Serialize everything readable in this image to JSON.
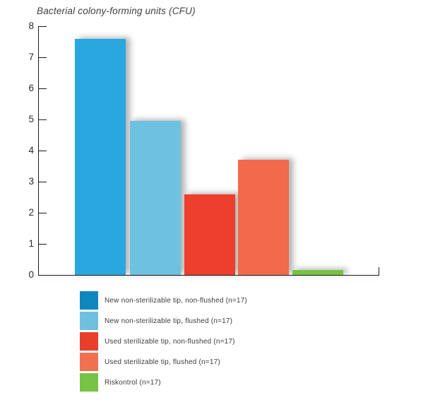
{
  "page": {
    "background": "#ffffff"
  },
  "chart_data": {
    "type": "bar",
    "title": "Bacterial colony-forming units (CFU)",
    "xlabel": "",
    "ylabel": "",
    "ylim": [
      0,
      8
    ],
    "yticks": [
      0,
      1,
      2,
      3,
      4,
      5,
      6,
      7,
      8
    ],
    "grid": false,
    "legend_position": "bottom-left",
    "categories": [
      "New non-sterilizable tip, non-flushed (n=17)",
      "New non-sterilizable tip, flushed (n=17)",
      "Used sterilizable tip, non-flushed (n=17)",
      "Used sterilizable tip, flushed (n=17)",
      "Riskontrol (n=17)"
    ],
    "values": [
      7.6,
      4.95,
      2.6,
      3.7,
      0.15
    ],
    "bar_colors": [
      "#29A8E0",
      "#6FC1E1",
      "#EE3E2D",
      "#F2694B",
      "#76C441"
    ],
    "legend_colors": [
      "#0D87BD",
      "#6FC0DF",
      "#E83E2B",
      "#EF7150",
      "#77C345"
    ],
    "axis_color": "#1a1a1a",
    "text_color": "#3C3C3B"
  }
}
